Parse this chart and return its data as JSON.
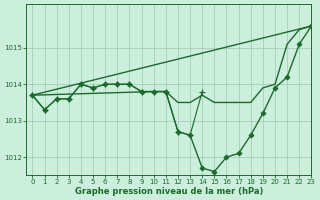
{
  "bg_color": "#cceedd",
  "grid_color": "#aaccbb",
  "line_color": "#1a6b2a",
  "xlabel": "Graphe pression niveau de la mer (hPa)",
  "xlim": [
    -0.5,
    23
  ],
  "ylim": [
    1011.5,
    1016.2
  ],
  "yticks": [
    1012,
    1013,
    1014,
    1015
  ],
  "xtick_labels": [
    "0",
    "1",
    "2",
    "3",
    "4",
    "5",
    "6",
    "7",
    "8",
    "9",
    "10",
    "11",
    "12",
    "13",
    "14",
    "15",
    "16",
    "17",
    "18",
    "19",
    "20",
    "21",
    "22",
    "23"
  ],
  "series": [
    {
      "x": [
        0,
        23
      ],
      "y": [
        1013.7,
        1015.6
      ],
      "marker": null,
      "markersize": 0,
      "linewidth": 1.0
    },
    {
      "x": [
        0,
        1,
        2,
        3,
        4,
        5,
        6,
        7,
        8,
        9,
        10,
        11,
        12,
        13,
        14,
        15,
        16,
        17,
        18,
        19,
        20,
        21,
        22,
        23
      ],
      "y": [
        1013.7,
        1013.3,
        1013.6,
        1013.6,
        1014.0,
        1013.9,
        1014.0,
        1014.0,
        1014.0,
        1013.8,
        1013.8,
        1013.8,
        1012.7,
        1012.6,
        1011.7,
        1011.6,
        1012.0,
        1012.1,
        1012.6,
        1013.2,
        1013.9,
        1014.2,
        1015.1,
        1015.6
      ],
      "marker": "D",
      "markersize": 2.5,
      "linewidth": 1.0
    },
    {
      "x": [
        0,
        10,
        11,
        12,
        13,
        14,
        15,
        16,
        17,
        18,
        19,
        20,
        21,
        22,
        23
      ],
      "y": [
        1013.7,
        1013.8,
        1013.8,
        1013.5,
        1013.5,
        1013.7,
        1013.5,
        1013.5,
        1013.5,
        1013.5,
        1013.9,
        1014.0,
        1015.1,
        1015.5,
        1015.6
      ],
      "marker": null,
      "markersize": 0,
      "linewidth": 1.0
    },
    {
      "x": [
        0,
        1,
        2,
        3,
        4,
        5,
        6,
        7,
        8,
        9,
        10,
        11,
        12,
        13,
        14
      ],
      "y": [
        1013.7,
        1013.3,
        1013.6,
        1013.6,
        1014.0,
        1013.9,
        1014.0,
        1014.0,
        1014.0,
        1013.8,
        1013.8,
        1013.8,
        1012.7,
        1012.6,
        1013.8
      ],
      "marker": "+",
      "markersize": 4,
      "linewidth": 0.8
    }
  ]
}
